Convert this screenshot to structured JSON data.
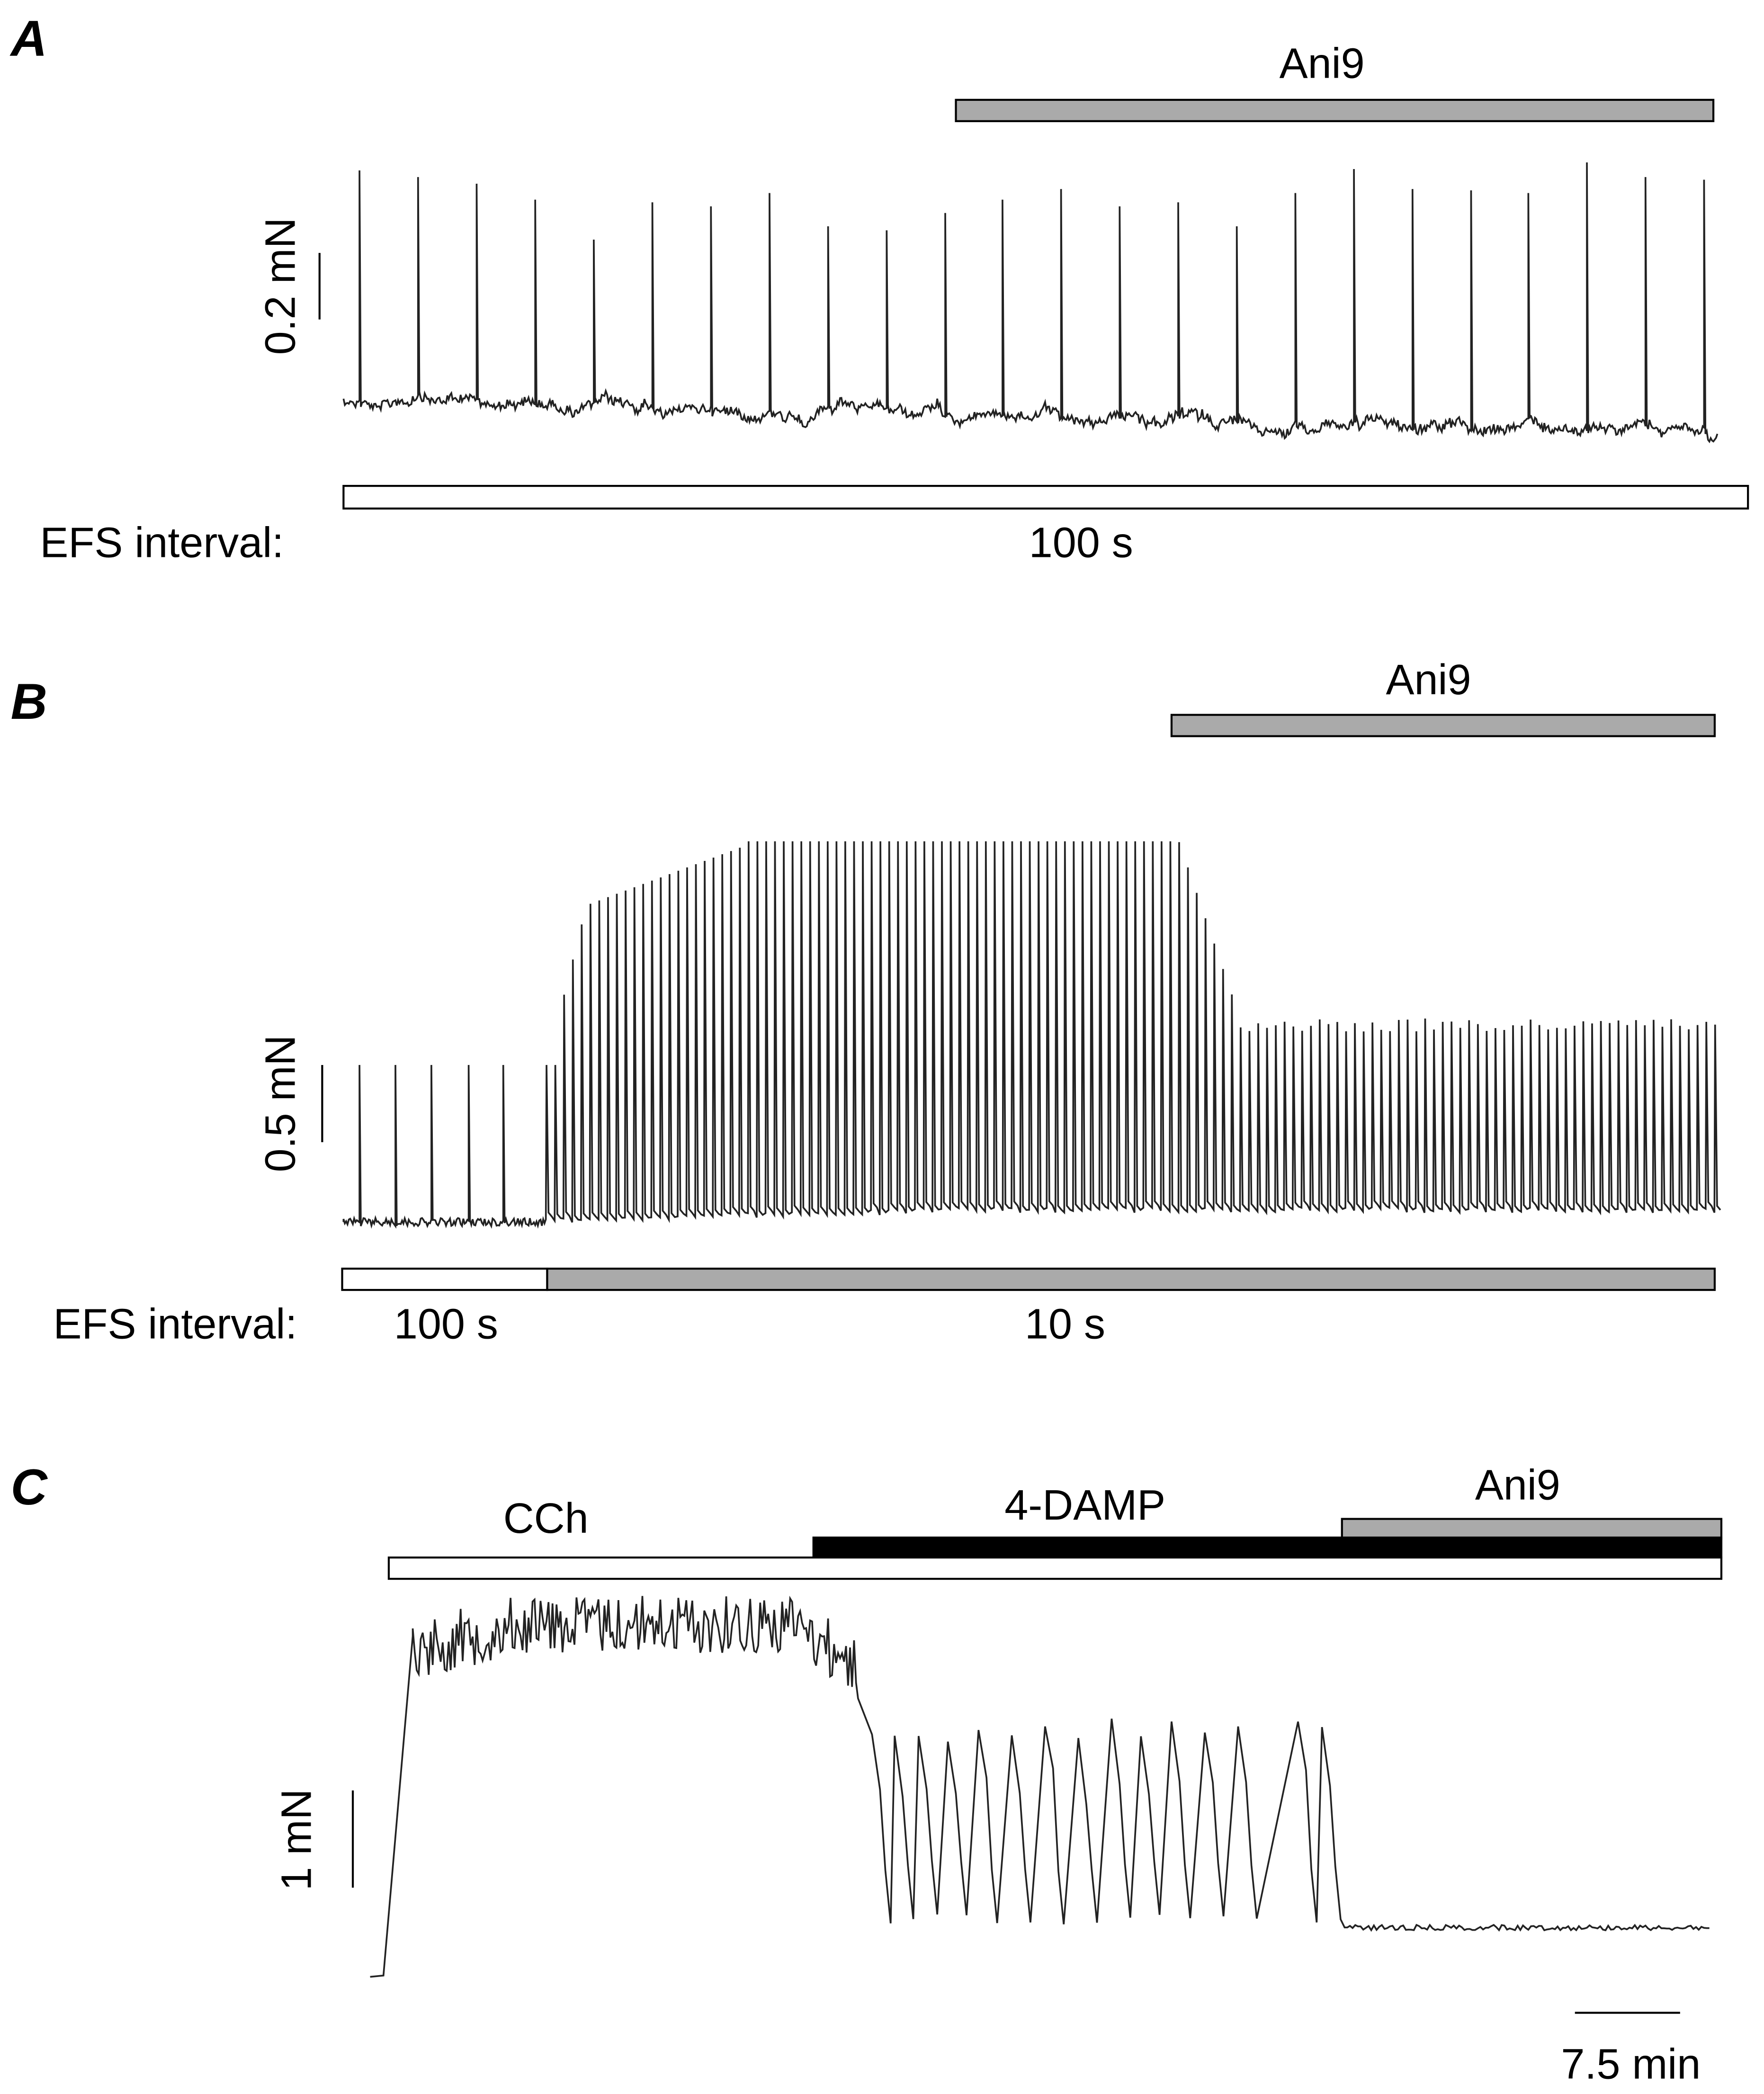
{
  "panels": [
    {
      "label": "A",
      "drug": "Ani9",
      "scale_bar": "0.2 mN",
      "efs_label": "EFS interval:",
      "intervals": [
        "100 s"
      ]
    },
    {
      "label": "B",
      "drug": "Ani9",
      "scale_bar": "0.5 mN",
      "efs_label": "EFS interval:",
      "intervals": [
        "100 s",
        "10 s"
      ]
    },
    {
      "label": "C",
      "treatments": [
        "CCh",
        "4-DAMP",
        "Ani9"
      ],
      "scale_bar": "1 mN",
      "time_bar": "7.5 min"
    }
  ]
}
